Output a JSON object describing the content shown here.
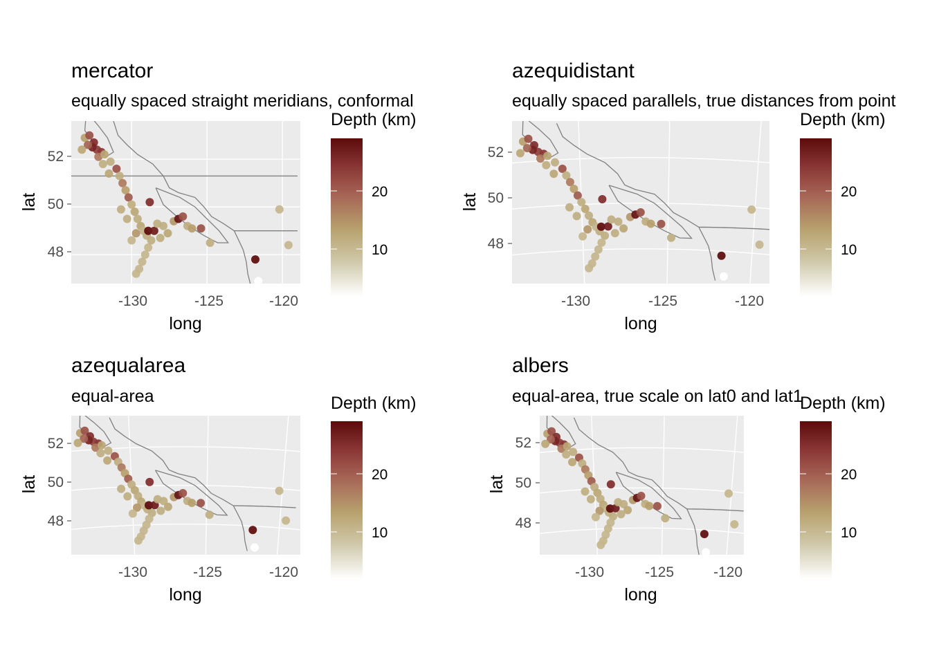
{
  "chart_data": [
    {
      "type": "scatter",
      "title": "mercator",
      "subtitle": "equally spaced straight meridians, conformal",
      "xlabel": "long",
      "ylabel": "lat",
      "x_ticks": [
        "-130",
        "-125",
        "-120"
      ],
      "y_ticks": [
        "48",
        "50",
        "52"
      ],
      "legend_title": "Depth (km)",
      "legend_ticks": [
        "10",
        "20"
      ]
    },
    {
      "type": "scatter",
      "title": "azequidistant",
      "subtitle": "equally spaced parallels, true distances from point",
      "xlabel": "long",
      "ylabel": "lat",
      "x_ticks": [
        "-130",
        "-125",
        "-120"
      ],
      "y_ticks": [
        "48",
        "50",
        "52"
      ],
      "legend_title": "Depth (km)",
      "legend_ticks": [
        "10",
        "20"
      ]
    },
    {
      "type": "scatter",
      "title": "azequalarea",
      "subtitle": "equal-area",
      "xlabel": "long",
      "ylabel": "lat",
      "x_ticks": [
        "-130",
        "-125",
        "-120"
      ],
      "y_ticks": [
        "48",
        "50",
        "52"
      ],
      "legend_title": "Depth (km)",
      "legend_ticks": [
        "10",
        "20"
      ]
    },
    {
      "type": "scatter",
      "title": "albers",
      "subtitle": "equal-area, true scale on lat0 and lat1",
      "xlabel": "long",
      "ylabel": "lat",
      "x_ticks": [
        "-130",
        "-125",
        "-120"
      ],
      "y_ticks": [
        "48",
        "50",
        "52"
      ],
      "legend_title": "Depth (km)",
      "legend_ticks": [
        "10",
        "20"
      ]
    }
  ],
  "common": {
    "xlim": [
      -134,
      -119
    ],
    "ylim": [
      46.7,
      53.6
    ],
    "depth_range": [
      2,
      30
    ],
    "colors": {
      "panel_bg": "#ebebeb",
      "grid": "#ffffff",
      "coast": "#808080",
      "low": "#ffffff",
      "mid_low": "#c8b98a",
      "mid": "#b59a6a",
      "mid_high": "#a04a4a",
      "high": "#5c0a0a"
    },
    "points": [
      [
        -133.1,
        52.9,
        14
      ],
      [
        -132.8,
        53.0,
        22
      ],
      [
        -132.5,
        52.7,
        26
      ],
      [
        -132.3,
        52.4,
        24
      ],
      [
        -132.0,
        52.3,
        25
      ],
      [
        -132.6,
        52.5,
        27
      ],
      [
        -132.9,
        52.6,
        20
      ],
      [
        -133.3,
        52.4,
        13
      ],
      [
        -132.2,
        52.1,
        18
      ],
      [
        -131.8,
        52.2,
        13
      ],
      [
        -131.4,
        51.9,
        12
      ],
      [
        -131.0,
        51.6,
        22
      ],
      [
        -130.8,
        51.3,
        12
      ],
      [
        -130.6,
        51.0,
        18
      ],
      [
        -130.4,
        50.7,
        14
      ],
      [
        -130.2,
        50.4,
        21
      ],
      [
        -130.0,
        50.1,
        12
      ],
      [
        -129.8,
        49.8,
        13
      ],
      [
        -129.6,
        49.5,
        12
      ],
      [
        -129.4,
        49.2,
        13
      ],
      [
        -129.2,
        49.0,
        11
      ],
      [
        -129.0,
        48.8,
        12
      ],
      [
        -128.7,
        48.6,
        12
      ],
      [
        -128.9,
        48.3,
        11
      ],
      [
        -129.1,
        48.0,
        11
      ],
      [
        -129.3,
        47.7,
        11
      ],
      [
        -129.5,
        47.4,
        11
      ],
      [
        -129.7,
        47.2,
        11
      ],
      [
        -128.8,
        50.2,
        26
      ],
      [
        -128.9,
        49.0,
        30
      ],
      [
        -128.5,
        49.0,
        28
      ],
      [
        -129.7,
        48.9,
        15
      ],
      [
        -128.3,
        49.3,
        12
      ],
      [
        -127.9,
        49.2,
        12
      ],
      [
        -127.6,
        48.9,
        13
      ],
      [
        -127.2,
        49.4,
        15
      ],
      [
        -126.9,
        49.5,
        29
      ],
      [
        -126.6,
        49.6,
        22
      ],
      [
        -126.3,
        49.2,
        12
      ],
      [
        -126.0,
        49.1,
        14
      ],
      [
        -125.4,
        49.1,
        22
      ],
      [
        -124.8,
        48.5,
        12
      ],
      [
        -121.8,
        47.8,
        30
      ],
      [
        -121.6,
        46.9,
        2
      ],
      [
        -120.2,
        49.9,
        11
      ],
      [
        -119.6,
        48.4,
        11
      ],
      [
        -130.7,
        49.9,
        12
      ],
      [
        -130.3,
        49.5,
        12
      ],
      [
        -131.5,
        51.4,
        13
      ],
      [
        -131.9,
        51.8,
        12
      ],
      [
        -130.0,
        48.6,
        11
      ],
      [
        -128.1,
        48.7,
        12
      ]
    ]
  }
}
